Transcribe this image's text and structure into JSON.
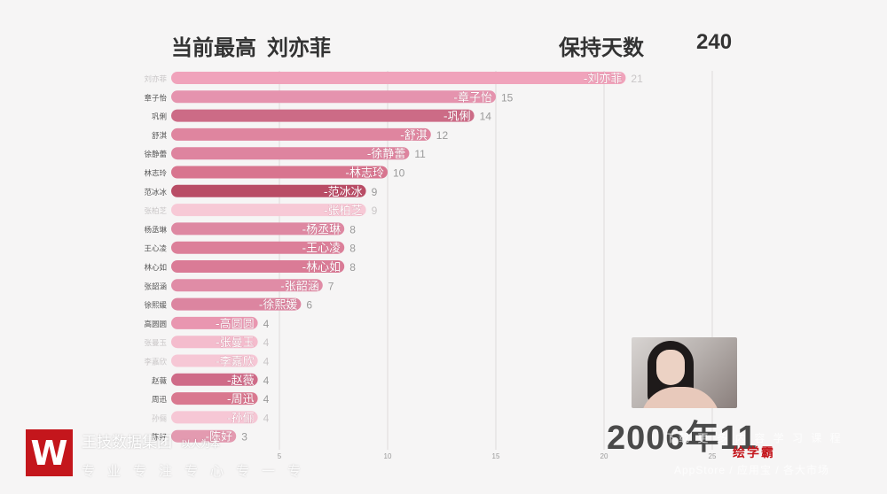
{
  "header": {
    "top_label": "当前最高",
    "top_name": "刘亦菲",
    "days_label": "保持天数",
    "days_value": "240"
  },
  "date_label": "2006年11",
  "colors": {
    "background": "#f6f5f5",
    "bar_colors": [
      "#f0a3bb",
      "#e593ae",
      "#cc6b86",
      "#df859f",
      "#de849f",
      "#d8758f",
      "#b94d66",
      "#f7c9d6",
      "#de88a2",
      "#dc7f99",
      "#da7b96",
      "#e08ca6",
      "#dc85a0",
      "#e996b0",
      "#f4bccd",
      "#f6c7d5",
      "#cf6b88",
      "#d9788f",
      "#f6c7d5",
      "#e39ab0"
    ],
    "dim_label_color": "#c9c6c7",
    "label_color": "#555555",
    "value_color": "#9a9a9a"
  },
  "chart_data": {
    "type": "bar",
    "orientation": "horizontal",
    "categories": [
      "刘亦菲",
      "章子怡",
      "巩俐",
      "舒淇",
      "徐静蕾",
      "林志玲",
      "范冰冰",
      "张柏芝",
      "杨丞琳",
      "王心凌",
      "林心如",
      "张韶涵",
      "徐熙媛",
      "高圆圆",
      "张曼玉",
      "李嘉欣",
      "赵薇",
      "周迅",
      "孙俪",
      "陈好"
    ],
    "bar_labels": [
      "-刘亦菲",
      "-章子怡",
      "-巩俐",
      "-舒淇",
      "-徐静蕾",
      "-林志玲",
      "-范冰冰",
      "-张柏芝",
      "-杨丞琳",
      "-王心凌",
      "-林心如",
      "-张韶涵",
      "-徐熙媛",
      "-高圆圆",
      "-张曼玉",
      "-李嘉欣",
      "-赵薇",
      "-周迅",
      "-孙俪",
      "-陈好"
    ],
    "values": [
      21,
      15,
      14,
      12,
      11,
      10,
      9,
      9,
      8,
      8,
      8,
      7,
      6,
      4,
      4,
      4,
      4,
      4,
      4,
      3
    ],
    "dim_categories": [
      "刘亦菲",
      "张柏芝",
      "张曼玉",
      "李嘉欣",
      "孙俪"
    ],
    "xlim": [
      0,
      25
    ],
    "xticks": [
      5,
      10,
      15,
      20,
      25
    ],
    "grid": true
  },
  "watermark": {
    "left_line1": "王技数据集团",
    "left_line1_small": "以人为本",
    "left_line2": "专业专注专心专一专",
    "right_line1": "下载 更 多 内 容 学 习 课 程",
    "right_line2": "AppStore / 应用宝 / 各大市场",
    "brand": "绘学霸"
  },
  "logo_glyph": "W"
}
